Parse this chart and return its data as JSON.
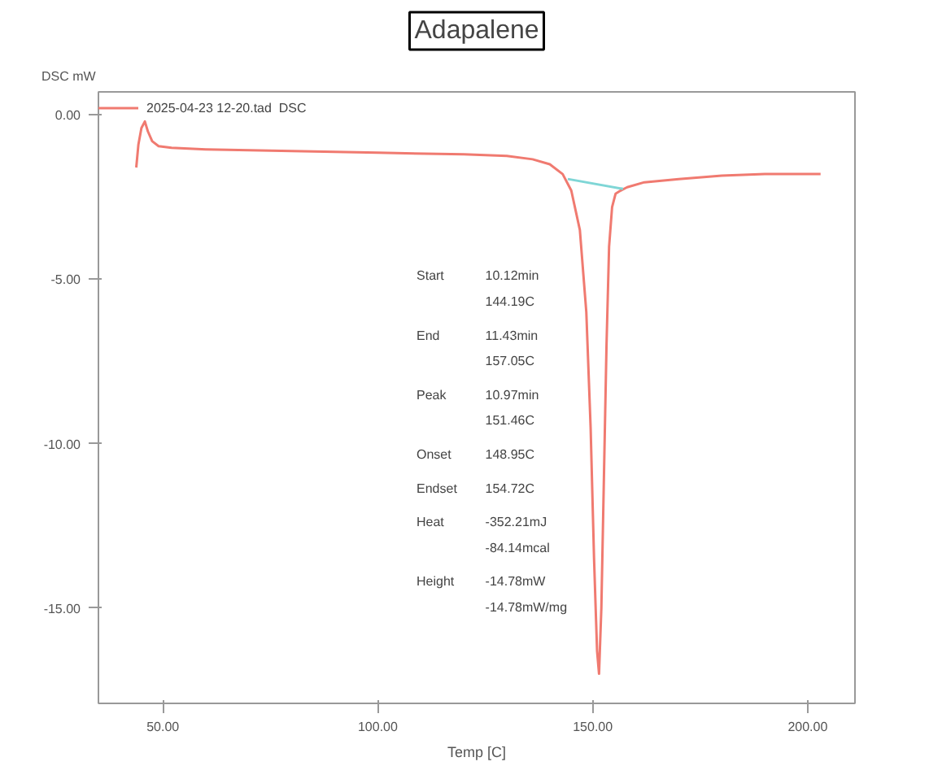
{
  "chart_data": {
    "type": "line",
    "title": "Adapalene",
    "xlabel": "Temp [C]",
    "ylabel": "DSC mW",
    "xlim": [
      35,
      211
    ],
    "ylim": [
      -17.9,
      0.7
    ],
    "xticks": [
      {
        "value": 50,
        "label": "50.00"
      },
      {
        "value": 100,
        "label": "100.00"
      },
      {
        "value": 150,
        "label": "150.00"
      },
      {
        "value": 200,
        "label": "200.00"
      }
    ],
    "yticks": [
      {
        "value": 0,
        "label": "0.00"
      },
      {
        "value": -5,
        "label": "-5.00"
      },
      {
        "value": -10,
        "label": "-10.00"
      },
      {
        "value": -15,
        "label": "-15.00"
      }
    ],
    "grid": false,
    "legend": "top left",
    "marker": "none",
    "line_style": "solid",
    "series": [
      {
        "name": "2025-04-23 12-20.tad  DSC",
        "color": "#f07a70",
        "x": [
          43.8,
          44.3,
          45,
          45.8,
          46.5,
          47.5,
          49,
          52,
          60,
          80,
          100,
          120,
          130,
          136,
          140,
          143,
          145,
          147,
          148.5,
          149.5,
          150.3,
          151,
          151.46,
          152,
          152.6,
          153.2,
          153.8,
          154.5,
          155.3,
          156.5,
          158,
          162,
          170,
          180,
          190,
          203
        ],
        "values": [
          -1.6,
          -0.9,
          -0.4,
          -0.2,
          -0.5,
          -0.8,
          -0.95,
          -1.0,
          -1.05,
          -1.1,
          -1.15,
          -1.2,
          -1.25,
          -1.35,
          -1.5,
          -1.8,
          -2.3,
          -3.5,
          -6.0,
          -9.5,
          -13.5,
          -16.3,
          -17.0,
          -15.0,
          -11.0,
          -7.0,
          -4.0,
          -2.8,
          -2.4,
          -2.3,
          -2.2,
          -2.05,
          -1.95,
          -1.85,
          -1.8,
          -1.8
        ]
      },
      {
        "color": "#7fd6d6",
        "x": [
          144.19,
          157.05
        ],
        "values": [
          -1.95,
          -2.25
        ]
      }
    ],
    "annotations": [
      "Start\n10.12min\n144.19C",
      "End\n11.43min\n157.05C",
      "Peak\n10.97min\n151.46C",
      "Onset\n148.95C",
      "Endset\n154.72C",
      "Heat\n-352.21mJ\n-84.14mcal",
      "Height\n-14.78mW\n-14.78mW/mg"
    ]
  }
}
